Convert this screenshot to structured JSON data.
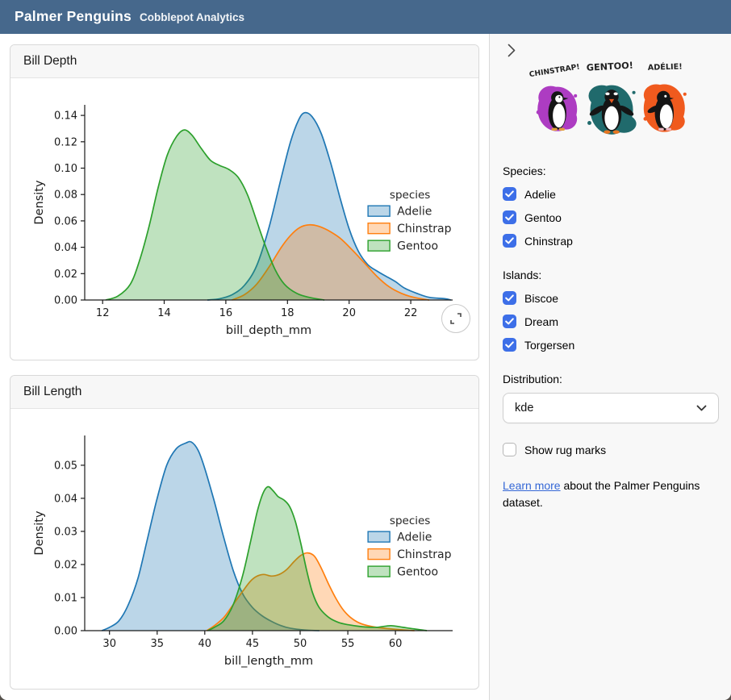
{
  "header": {
    "title": "Palmer Penguins",
    "subtitle": "Cobblepot Analytics"
  },
  "colors": {
    "header_bg": "#46688c",
    "accent": "#3d6fe8",
    "link": "#3467d6",
    "sidebar_bg": "#f8f8f8",
    "adelie": "#1f77b4",
    "chinstrap": "#ff7f0e",
    "gentoo": "#2ca02c",
    "blob_chinstrap": "#ad3cc2",
    "blob_gentoo": "#206a6c",
    "blob_adelie": "#f05a1e"
  },
  "cards": [
    {
      "title": "Bill Depth"
    },
    {
      "title": "Bill Length"
    }
  ],
  "sidebar": {
    "penguins": [
      {
        "label": "CHINSTRAP!"
      },
      {
        "label": "GENTOO!"
      },
      {
        "label": "ADÉLIE!"
      }
    ],
    "species": {
      "label": "Species:",
      "options": [
        {
          "label": "Adelie",
          "checked": true
        },
        {
          "label": "Gentoo",
          "checked": true
        },
        {
          "label": "Chinstrap",
          "checked": true
        }
      ]
    },
    "islands": {
      "label": "Islands:",
      "options": [
        {
          "label": "Biscoe",
          "checked": true
        },
        {
          "label": "Dream",
          "checked": true
        },
        {
          "label": "Torgersen",
          "checked": true
        }
      ]
    },
    "distribution": {
      "label": "Distribution:",
      "value": "kde"
    },
    "rug": {
      "label": "Show rug marks",
      "checked": false
    },
    "footnote": {
      "link_text": "Learn more",
      "rest": " about the Palmer Penguins dataset."
    }
  },
  "chart_data": [
    {
      "type": "area",
      "title": "Bill Depth",
      "xlabel": "bill_depth_mm",
      "ylabel": "Density",
      "xlim": [
        11.42,
        23.36
      ],
      "ylim": [
        0,
        0.148
      ],
      "xticks": [
        12,
        14,
        16,
        18,
        20,
        22
      ],
      "yticks": [
        0.0,
        0.02,
        0.04,
        0.06,
        0.08,
        0.1,
        0.12,
        0.14
      ],
      "ydecimals": 2,
      "grid": false,
      "legend_title": "species",
      "legend_x": 0.77,
      "legend_y": 0.48,
      "series": [
        {
          "name": "Adelie",
          "color": "#1f77b4",
          "points": [
            [
              15.4,
              0
            ],
            [
              15.8,
              0.001
            ],
            [
              16.2,
              0.004
            ],
            [
              16.6,
              0.011
            ],
            [
              17.0,
              0.026
            ],
            [
              17.4,
              0.055
            ],
            [
              17.8,
              0.093
            ],
            [
              18.1,
              0.12
            ],
            [
              18.35,
              0.136
            ],
            [
              18.55,
              0.142
            ],
            [
              18.8,
              0.139
            ],
            [
              19.1,
              0.126
            ],
            [
              19.4,
              0.104
            ],
            [
              19.7,
              0.078
            ],
            [
              20.0,
              0.054
            ],
            [
              20.3,
              0.037
            ],
            [
              20.6,
              0.027
            ],
            [
              20.9,
              0.022
            ],
            [
              21.2,
              0.018
            ],
            [
              21.5,
              0.014
            ],
            [
              21.8,
              0.009
            ],
            [
              22.2,
              0.005
            ],
            [
              22.6,
              0.002
            ],
            [
              23.1,
              0.001
            ],
            [
              23.3,
              0
            ]
          ]
        },
        {
          "name": "Chinstrap",
          "color": "#ff7f0e",
          "points": [
            [
              16.2,
              0
            ],
            [
              16.6,
              0.004
            ],
            [
              17.0,
              0.012
            ],
            [
              17.4,
              0.025
            ],
            [
              17.8,
              0.04
            ],
            [
              18.1,
              0.049
            ],
            [
              18.4,
              0.055
            ],
            [
              18.7,
              0.057
            ],
            [
              19.0,
              0.056
            ],
            [
              19.3,
              0.053
            ],
            [
              19.7,
              0.047
            ],
            [
              20.1,
              0.038
            ],
            [
              20.5,
              0.028
            ],
            [
              20.9,
              0.018
            ],
            [
              21.3,
              0.01
            ],
            [
              21.7,
              0.005
            ],
            [
              22.1,
              0.002
            ],
            [
              22.6,
              0
            ]
          ]
        },
        {
          "name": "Gentoo",
          "color": "#2ca02c",
          "points": [
            [
              12.1,
              0
            ],
            [
              12.5,
              0.003
            ],
            [
              12.9,
              0.012
            ],
            [
              13.2,
              0.03
            ],
            [
              13.5,
              0.055
            ],
            [
              13.8,
              0.085
            ],
            [
              14.1,
              0.11
            ],
            [
              14.4,
              0.124
            ],
            [
              14.65,
              0.129
            ],
            [
              14.9,
              0.125
            ],
            [
              15.2,
              0.115
            ],
            [
              15.5,
              0.106
            ],
            [
              15.8,
              0.102
            ],
            [
              16.1,
              0.099
            ],
            [
              16.4,
              0.093
            ],
            [
              16.7,
              0.08
            ],
            [
              17.0,
              0.06
            ],
            [
              17.3,
              0.04
            ],
            [
              17.6,
              0.023
            ],
            [
              17.9,
              0.012
            ],
            [
              18.3,
              0.005
            ],
            [
              18.7,
              0.002
            ],
            [
              19.2,
              0
            ]
          ]
        }
      ]
    },
    {
      "type": "area",
      "title": "Bill Length",
      "xlabel": "bill_length_mm",
      "ylabel": "Density",
      "xlim": [
        27.4,
        66.0
      ],
      "ylim": [
        0,
        0.059
      ],
      "xticks": [
        30,
        35,
        40,
        45,
        50,
        55,
        60
      ],
      "yticks": [
        0.0,
        0.01,
        0.02,
        0.03,
        0.04,
        0.05
      ],
      "ydecimals": 2,
      "grid": false,
      "legend_title": "species",
      "legend_x": 0.77,
      "legend_y": 0.455,
      "series": [
        {
          "name": "Adelie",
          "color": "#1f77b4",
          "points": [
            [
              29.2,
              0
            ],
            [
              30,
              0.001
            ],
            [
              31,
              0.003
            ],
            [
              32,
              0.008
            ],
            [
              33,
              0.016
            ],
            [
              34,
              0.028
            ],
            [
              35,
              0.04
            ],
            [
              36,
              0.05
            ],
            [
              37,
              0.055
            ],
            [
              38,
              0.0567
            ],
            [
              38.6,
              0.057
            ],
            [
              39.3,
              0.0545
            ],
            [
              40,
              0.049
            ],
            [
              41,
              0.039
            ],
            [
              42,
              0.028
            ],
            [
              43,
              0.018
            ],
            [
              44,
              0.011
            ],
            [
              45,
              0.007
            ],
            [
              46,
              0.0045
            ],
            [
              47,
              0.0028
            ],
            [
              48,
              0.0015
            ],
            [
              49,
              0.0007
            ],
            [
              50.5,
              0.0002
            ],
            [
              52,
              0
            ]
          ]
        },
        {
          "name": "Chinstrap",
          "color": "#ff7f0e",
          "points": [
            [
              40.2,
              0
            ],
            [
              41,
              0.0015
            ],
            [
              42,
              0.004
            ],
            [
              43,
              0.008
            ],
            [
              44,
              0.012
            ],
            [
              44.8,
              0.015
            ],
            [
              45.5,
              0.0165
            ],
            [
              46.2,
              0.017
            ],
            [
              47,
              0.0165
            ],
            [
              47.8,
              0.017
            ],
            [
              48.6,
              0.0185
            ],
            [
              49.4,
              0.021
            ],
            [
              50.1,
              0.0228
            ],
            [
              50.8,
              0.0235
            ],
            [
              51.5,
              0.0225
            ],
            [
              52.2,
              0.019
            ],
            [
              53,
              0.014
            ],
            [
              53.8,
              0.0095
            ],
            [
              54.6,
              0.006
            ],
            [
              55.5,
              0.0035
            ],
            [
              56.5,
              0.002
            ],
            [
              58,
              0.001
            ],
            [
              60,
              0.0004
            ],
            [
              62,
              0
            ]
          ]
        },
        {
          "name": "Gentoo",
          "color": "#2ca02c",
          "points": [
            [
              40.3,
              0
            ],
            [
              41,
              0.001
            ],
            [
              42,
              0.003
            ],
            [
              43,
              0.008
            ],
            [
              44,
              0.017
            ],
            [
              44.8,
              0.027
            ],
            [
              45.5,
              0.036
            ],
            [
              46.1,
              0.0415
            ],
            [
              46.6,
              0.0435
            ],
            [
              47.1,
              0.0425
            ],
            [
              47.7,
              0.0405
            ],
            [
              48.3,
              0.0395
            ],
            [
              48.9,
              0.0375
            ],
            [
              49.5,
              0.033
            ],
            [
              50.1,
              0.026
            ],
            [
              50.7,
              0.018
            ],
            [
              51.3,
              0.0115
            ],
            [
              52,
              0.007
            ],
            [
              53,
              0.004
            ],
            [
              54,
              0.0025
            ],
            [
              55,
              0.0018
            ],
            [
              56.5,
              0.0012
            ],
            [
              58,
              0.001
            ],
            [
              59.5,
              0.0015
            ],
            [
              60.8,
              0.001
            ],
            [
              62,
              0.0005
            ],
            [
              63.3,
              0
            ]
          ]
        }
      ]
    }
  ]
}
